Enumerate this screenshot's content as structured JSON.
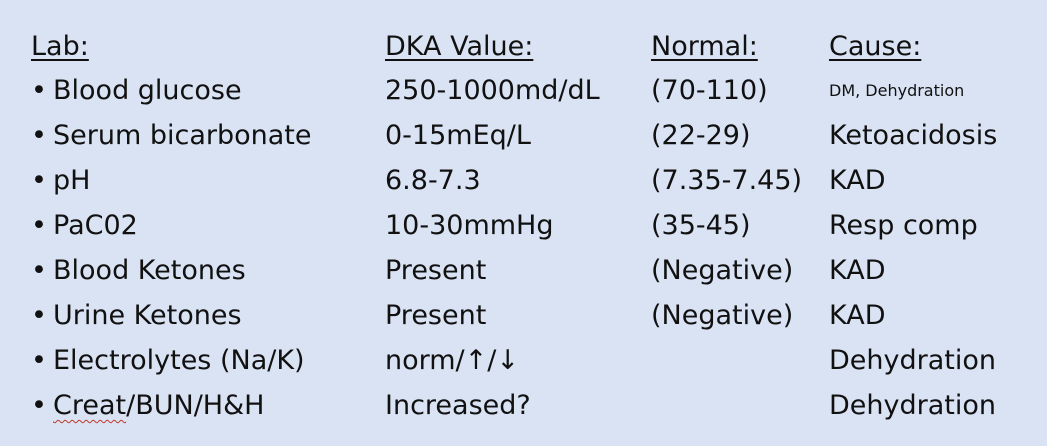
{
  "headers": {
    "lab": "Lab:",
    "dka": "DKA Value:",
    "normal": "Normal:",
    "cause": "Cause:"
  },
  "bullet": "•",
  "rows": [
    {
      "lab": "Blood glucose",
      "dka": "250-1000md/dL",
      "normal": "(70-110)",
      "cause": "DM, Dehydration"
    },
    {
      "lab": "Serum bicarbonate",
      "dka": "0-15mEq/L",
      "normal": "(22-29)",
      "cause": "Ketoacidosis"
    },
    {
      "lab": "pH",
      "dka": "6.8-7.3",
      "normal": "(7.35-7.45)",
      "cause": "KAD"
    },
    {
      "lab": "PaC02",
      "dka": "10-30mmHg",
      "normal": "(35-45)",
      "cause": "Resp comp"
    },
    {
      "lab": "Blood Ketones",
      "dka": "Present",
      "normal": "(Negative)",
      "cause": "KAD"
    },
    {
      "lab": "Urine Ketones",
      "dka": "Present",
      "normal": "(Negative)",
      "cause": "KAD"
    },
    {
      "lab": "Electrolytes (Na/K)",
      "dka": "norm/↑/↓",
      "normal": "",
      "cause": "Dehydration"
    },
    {
      "lab_spellcheck": "Creat",
      "lab_rest": "/BUN/H&H",
      "dka": "Increased?",
      "normal": "",
      "cause": "Dehydration"
    }
  ]
}
